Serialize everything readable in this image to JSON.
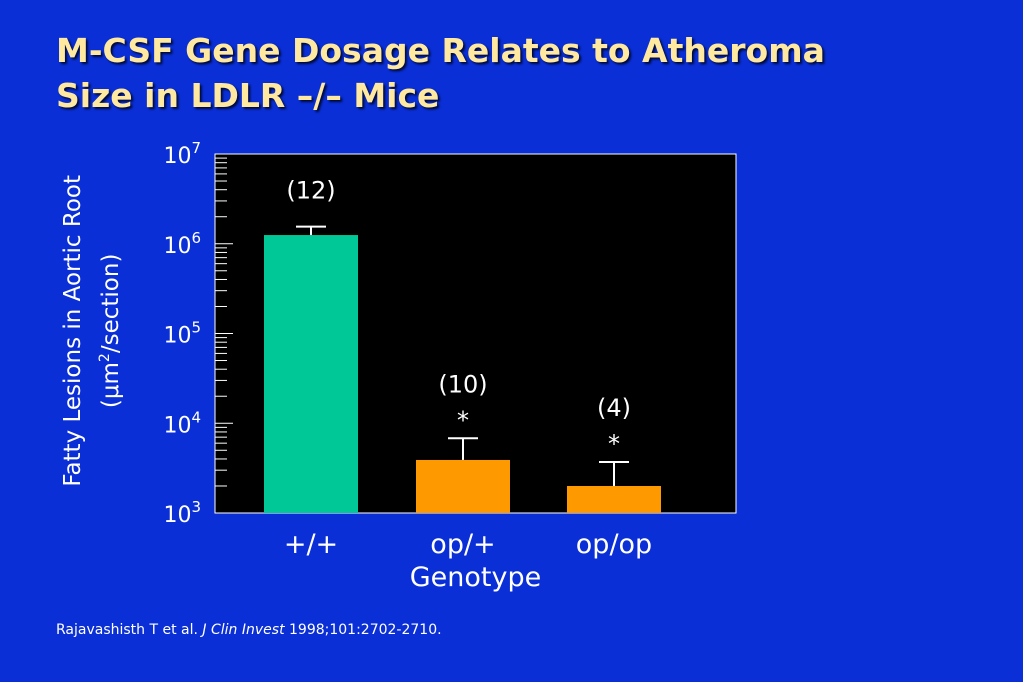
{
  "title": {
    "line1": "M-CSF Gene Dosage Relates to Atheroma",
    "line2": "Size in LDLR –/– Mice"
  },
  "citation": {
    "authors": "Rajavashisth T et al. ",
    "journal": "J Clin Invest",
    "details": " 1998;101:2702-2710."
  },
  "chart_data": {
    "type": "bar",
    "scale": "log",
    "ylim": [
      1000,
      10000000
    ],
    "yticks": [
      {
        "base": "10",
        "exp": "3",
        "value": 1000
      },
      {
        "base": "10",
        "exp": "4",
        "value": 10000
      },
      {
        "base": "10",
        "exp": "5",
        "value": 100000
      },
      {
        "base": "10",
        "exp": "6",
        "value": 1000000
      },
      {
        "base": "10",
        "exp": "7",
        "value": 10000000
      }
    ],
    "ylabel_line1": "Fatty Lesions in Aortic Root",
    "ylabel_line2_prefix": "(μm",
    "ylabel_line2_sup": "2",
    "ylabel_line2_suffix": "/section)",
    "xlabel": "Genotype",
    "categories": [
      "+/+",
      "op/+",
      "op/op"
    ],
    "values": [
      1250000,
      3900,
      2000
    ],
    "error_upper": [
      1550000,
      6800,
      3700
    ],
    "n_labels": [
      "(12)",
      "(10)",
      "(4)"
    ],
    "significance": [
      "",
      "*",
      "*"
    ],
    "colors": [
      "#00c896",
      "#ff9900",
      "#ff9900"
    ],
    "plot_background": "#000000",
    "background": "#0a2fd6",
    "grid": false
  }
}
